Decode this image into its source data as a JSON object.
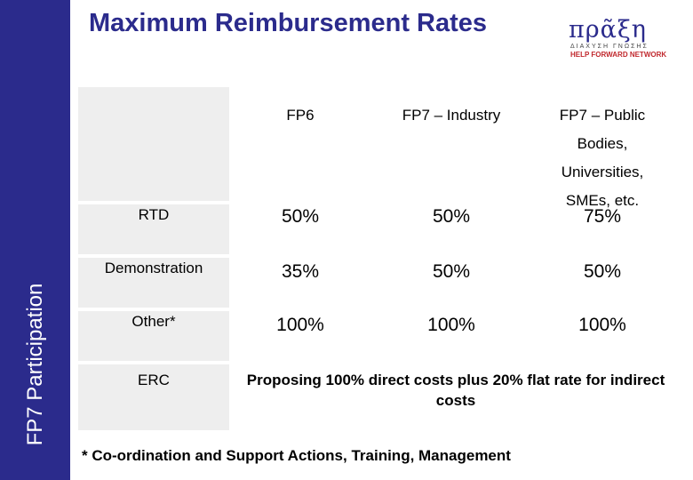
{
  "sidebar": {
    "label": "FP7 Participation"
  },
  "title": "Maximum Reimbursement Rates",
  "logo": {
    "main": "πρᾶξη",
    "sub": "ΔΙΑΧΥΣΗ ΓΝΩΣΗΣ",
    "tag": "HELP FORWARD NETWORK"
  },
  "table": {
    "headers": [
      "FP6",
      "FP7 – Industry",
      "FP7 – Public Bodies, Universities, SMEs, etc."
    ],
    "rows": [
      {
        "label": "RTD",
        "values": [
          "50%",
          "50%",
          "75%"
        ]
      },
      {
        "label": "Demonstration",
        "values": [
          "35%",
          "50%",
          "50%"
        ]
      },
      {
        "label": "Other*",
        "values": [
          "100%",
          "100%",
          "100%"
        ]
      },
      {
        "label": "ERC",
        "note": "Proposing 100% direct costs plus 20% flat rate for indirect costs"
      }
    ]
  },
  "footnote": "* Co-ordination and Support Actions, Training, Management"
}
